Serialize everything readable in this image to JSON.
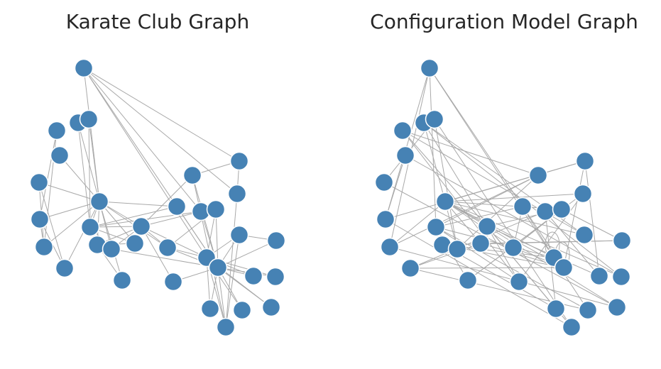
{
  "panels": [
    {
      "title": "Karate Club Graph"
    },
    {
      "title": "Configuration Model Graph"
    }
  ],
  "style": {
    "node_color": "#4682b4",
    "node_stroke": "#ffffff",
    "edge_color": "#a9a9a9"
  },
  "node_count": 34,
  "karate_edges": [
    [
      0,
      1
    ],
    [
      0,
      2
    ],
    [
      0,
      3
    ],
    [
      0,
      4
    ],
    [
      0,
      5
    ],
    [
      0,
      6
    ],
    [
      0,
      7
    ],
    [
      0,
      8
    ],
    [
      0,
      10
    ],
    [
      0,
      11
    ],
    [
      0,
      12
    ],
    [
      0,
      13
    ],
    [
      0,
      17
    ],
    [
      0,
      19
    ],
    [
      0,
      21
    ],
    [
      0,
      31
    ],
    [
      1,
      2
    ],
    [
      1,
      3
    ],
    [
      1,
      7
    ],
    [
      1,
      13
    ],
    [
      1,
      17
    ],
    [
      1,
      19
    ],
    [
      1,
      21
    ],
    [
      1,
      30
    ],
    [
      2,
      3
    ],
    [
      2,
      7
    ],
    [
      2,
      8
    ],
    [
      2,
      9
    ],
    [
      2,
      13
    ],
    [
      2,
      27
    ],
    [
      2,
      28
    ],
    [
      2,
      32
    ],
    [
      3,
      7
    ],
    [
      3,
      12
    ],
    [
      3,
      13
    ],
    [
      4,
      6
    ],
    [
      4,
      10
    ],
    [
      5,
      6
    ],
    [
      5,
      10
    ],
    [
      5,
      16
    ],
    [
      6,
      16
    ],
    [
      8,
      30
    ],
    [
      8,
      32
    ],
    [
      8,
      33
    ],
    [
      9,
      33
    ],
    [
      13,
      33
    ],
    [
      14,
      32
    ],
    [
      14,
      33
    ],
    [
      15,
      32
    ],
    [
      15,
      33
    ],
    [
      18,
      32
    ],
    [
      18,
      33
    ],
    [
      19,
      33
    ],
    [
      20,
      32
    ],
    [
      20,
      33
    ],
    [
      22,
      32
    ],
    [
      22,
      33
    ],
    [
      23,
      25
    ],
    [
      23,
      27
    ],
    [
      23,
      29
    ],
    [
      23,
      32
    ],
    [
      23,
      33
    ],
    [
      24,
      25
    ],
    [
      24,
      27
    ],
    [
      24,
      31
    ],
    [
      25,
      31
    ],
    [
      26,
      29
    ],
    [
      26,
      33
    ],
    [
      27,
      33
    ],
    [
      28,
      31
    ],
    [
      28,
      33
    ],
    [
      29,
      32
    ],
    [
      29,
      33
    ],
    [
      30,
      32
    ],
    [
      30,
      33
    ],
    [
      31,
      32
    ],
    [
      31,
      33
    ],
    [
      32,
      33
    ]
  ],
  "config_edges": [
    [
      4,
      18
    ],
    [
      4,
      28
    ],
    [
      4,
      33
    ],
    [
      6,
      11
    ],
    [
      6,
      23
    ],
    [
      6,
      31
    ],
    [
      7,
      26
    ],
    [
      5,
      27
    ],
    [
      10,
      20
    ],
    [
      16,
      29
    ],
    [
      17,
      22
    ],
    [
      3,
      14
    ],
    [
      3,
      26
    ],
    [
      3,
      32
    ],
    [
      8,
      19
    ],
    [
      8,
      33
    ],
    [
      9,
      25
    ],
    [
      15,
      24
    ],
    [
      12,
      30
    ],
    [
      13,
      21
    ],
    [
      0,
      2
    ],
    [
      0,
      5
    ],
    [
      0,
      7
    ],
    [
      0,
      8
    ],
    [
      0,
      13
    ],
    [
      0,
      22
    ],
    [
      0,
      24
    ],
    [
      0,
      25
    ],
    [
      0,
      29
    ],
    [
      0,
      30
    ],
    [
      0,
      32
    ],
    [
      0,
      33
    ],
    [
      1,
      3
    ],
    [
      1,
      9
    ],
    [
      1,
      12
    ],
    [
      1,
      18
    ],
    [
      1,
      19
    ],
    [
      1,
      27
    ],
    [
      1,
      31
    ],
    [
      2,
      14
    ],
    [
      2,
      15
    ],
    [
      2,
      16
    ],
    [
      2,
      17
    ],
    [
      2,
      20
    ],
    [
      2,
      23
    ],
    [
      2,
      30
    ],
    [
      31,
      33
    ],
    [
      33,
      33
    ],
    [
      32,
      33
    ],
    [
      32,
      32
    ],
    [
      4,
      7
    ],
    [
      5,
      20
    ],
    [
      10,
      21
    ],
    [
      11,
      22
    ],
    [
      6,
      24
    ],
    [
      12,
      25
    ],
    [
      13,
      27
    ],
    [
      14,
      28
    ],
    [
      15,
      28
    ],
    [
      17,
      29
    ],
    [
      18,
      31
    ],
    [
      19,
      32
    ],
    [
      21,
      23
    ],
    [
      26,
      30
    ],
    [
      3,
      33
    ],
    [
      9,
      16
    ],
    [
      24,
      33
    ],
    [
      8,
      30
    ],
    [
      0,
      17
    ],
    [
      2,
      9
    ],
    [
      5,
      31
    ],
    [
      7,
      33
    ],
    [
      1,
      32
    ],
    [
      16,
      27
    ]
  ]
}
